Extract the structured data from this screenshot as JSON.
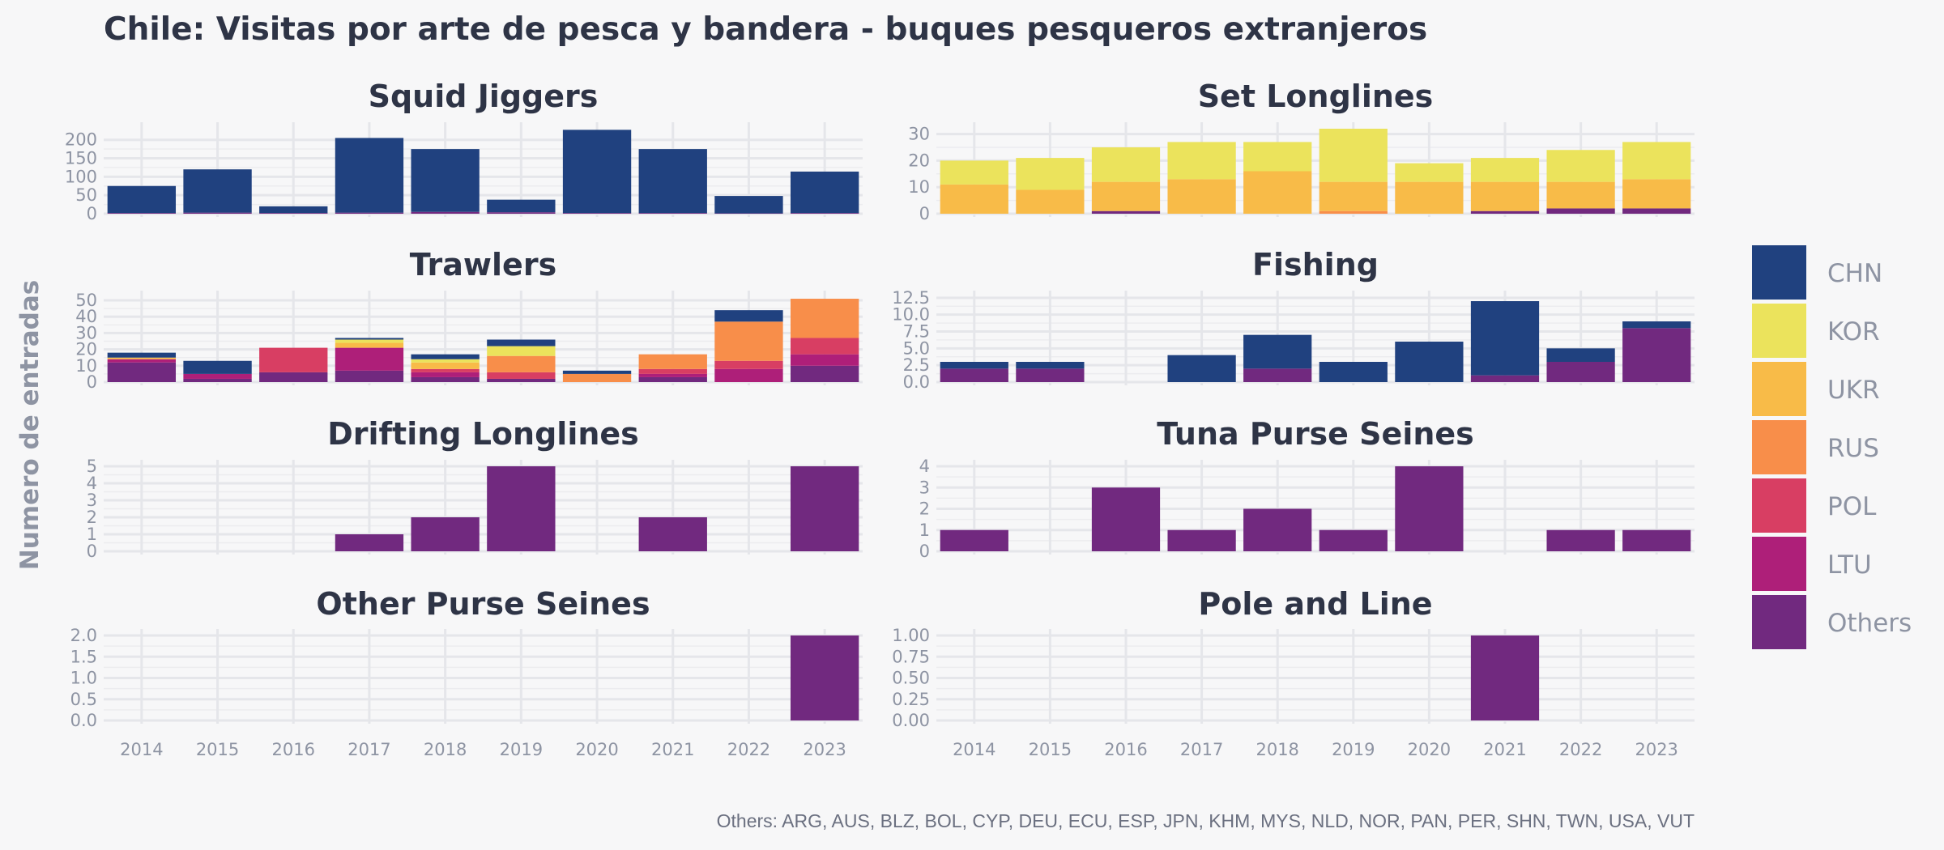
{
  "colors": {
    "CHN": "#20417f",
    "KOR": "#ebe35c",
    "UKR": "#f8bb48",
    "RUS": "#f88e4a",
    "POL": "#d83e63",
    "LTU": "#ae1f79",
    "Others": "#71297f"
  },
  "chart_data": {
    "type": "bar",
    "stacked": true,
    "title": "Chile: Visitas por arte de pesca y bandera - buques pesqueros extranjeros",
    "ylabel": "Numero de entradas",
    "caption": "Others: ARG, AUS, BLZ, BOL, CYP, DEU, ECU, ESP, JPN, KHM, MYS, NLD, NOR, PAN, PER, SHN, TWN, USA, VUT",
    "x": [
      "2014",
      "2015",
      "2016",
      "2017",
      "2018",
      "2019",
      "2020",
      "2021",
      "2022",
      "2023"
    ],
    "legend": {
      "position": "right",
      "entries": [
        "CHN",
        "KOR",
        "UKR",
        "RUS",
        "POL",
        "LTU",
        "Others"
      ]
    },
    "grid": true,
    "panels": [
      {
        "name": "Squid Jiggers",
        "ylim": [
          0,
          230
        ],
        "yticks": [
          0,
          50,
          100,
          150,
          200
        ],
        "ytick_labels": [
          "0",
          "50",
          "100",
          "150",
          "200"
        ],
        "series": [
          {
            "name": "Others",
            "values": [
              2,
              3,
              2,
              3,
              5,
              4,
              2,
              2,
              1,
              2
            ]
          },
          {
            "name": "LTU",
            "values": [
              0,
              0,
              0,
              0,
              0,
              0,
              0,
              0,
              0,
              0
            ]
          },
          {
            "name": "POL",
            "values": [
              0,
              0,
              0,
              0,
              0,
              0,
              0,
              0,
              0,
              0
            ]
          },
          {
            "name": "RUS",
            "values": [
              0,
              0,
              0,
              0,
              0,
              0,
              0,
              0,
              0,
              0
            ]
          },
          {
            "name": "UKR",
            "values": [
              0,
              0,
              0,
              0,
              0,
              0,
              0,
              0,
              0,
              0
            ]
          },
          {
            "name": "KOR",
            "values": [
              0,
              0,
              0,
              0,
              0,
              0,
              0,
              0,
              0,
              0
            ]
          },
          {
            "name": "CHN",
            "values": [
              73,
              117,
              18,
              202,
              170,
              34,
              225,
              173,
              47,
              112
            ]
          }
        ]
      },
      {
        "name": "Set Longlines",
        "ylim": [
          0,
          32
        ],
        "yticks": [
          0,
          10,
          20,
          30
        ],
        "ytick_labels": [
          "0",
          "10",
          "20",
          "30"
        ],
        "series": [
          {
            "name": "Others",
            "values": [
              0,
              0,
              1,
              0,
              0,
              0,
              0,
              1,
              2,
              2
            ]
          },
          {
            "name": "LTU",
            "values": [
              0,
              0,
              0,
              0,
              0,
              0,
              0,
              0,
              0,
              0
            ]
          },
          {
            "name": "POL",
            "values": [
              0,
              0,
              0,
              0,
              0,
              0,
              0,
              0,
              0,
              0
            ]
          },
          {
            "name": "RUS",
            "values": [
              0,
              0,
              0,
              0,
              0,
              1,
              0,
              0,
              0,
              0
            ]
          },
          {
            "name": "UKR",
            "values": [
              11,
              9,
              11,
              13,
              16,
              11,
              12,
              11,
              10,
              11
            ]
          },
          {
            "name": "KOR",
            "values": [
              9,
              12,
              13,
              14,
              11,
              20,
              7,
              9,
              12,
              14
            ]
          },
          {
            "name": "CHN",
            "values": [
              0,
              0,
              0,
              0,
              0,
              0,
              0,
              0,
              0,
              0
            ]
          }
        ]
      },
      {
        "name": "Trawlers",
        "ylim": [
          0,
          52
        ],
        "yticks": [
          0,
          10,
          20,
          30,
          40,
          50
        ],
        "ytick_labels": [
          "0",
          "10",
          "20",
          "30",
          "40",
          "50"
        ],
        "series": [
          {
            "name": "Others",
            "values": [
              12,
              2,
              6,
              7,
              3,
              2,
              0,
              3,
              0,
              10
            ]
          },
          {
            "name": "LTU",
            "values": [
              2,
              3,
              0,
              14,
              3,
              0,
              0,
              2,
              8,
              7
            ]
          },
          {
            "name": "POL",
            "values": [
              0,
              0,
              15,
              0,
              2,
              4,
              0,
              3,
              5,
              10
            ]
          },
          {
            "name": "RUS",
            "values": [
              0,
              0,
              0,
              0,
              0,
              10,
              5,
              9,
              24,
              24
            ]
          },
          {
            "name": "UKR",
            "values": [
              1,
              0,
              0,
              3,
              4,
              0,
              0,
              0,
              0,
              0
            ]
          },
          {
            "name": "KOR",
            "values": [
              0,
              0,
              0,
              2,
              2,
              6,
              0,
              0,
              0,
              0
            ]
          },
          {
            "name": "CHN",
            "values": [
              3,
              8,
              0,
              1,
              3,
              4,
              2,
              0,
              7,
              0
            ]
          }
        ]
      },
      {
        "name": "Fishing",
        "ylim": [
          0,
          12.6
        ],
        "yticks": [
          0,
          2.5,
          5,
          7.5,
          10,
          12.5
        ],
        "ytick_labels": [
          "0.0",
          "2.5",
          "5.0",
          "7.5",
          "10.0",
          "12.5"
        ],
        "series": [
          {
            "name": "Others",
            "values": [
              2,
              2,
              0,
              0,
              2,
              0,
              0,
              1,
              3,
              8
            ]
          },
          {
            "name": "LTU",
            "values": [
              0,
              0,
              0,
              0,
              0,
              0,
              0,
              0,
              0,
              0
            ]
          },
          {
            "name": "POL",
            "values": [
              0,
              0,
              0,
              0,
              0,
              0,
              0,
              0,
              0,
              0
            ]
          },
          {
            "name": "RUS",
            "values": [
              0,
              0,
              0,
              0,
              0,
              0,
              0,
              0,
              0,
              0
            ]
          },
          {
            "name": "UKR",
            "values": [
              0,
              0,
              0,
              0,
              0,
              0,
              0,
              0,
              0,
              0
            ]
          },
          {
            "name": "KOR",
            "values": [
              0,
              0,
              0,
              0,
              0,
              0,
              0,
              0,
              0,
              0
            ]
          },
          {
            "name": "CHN",
            "values": [
              1,
              1,
              0,
              4,
              5,
              3,
              6,
              11,
              2,
              1
            ]
          }
        ]
      },
      {
        "name": "Drifting Longlines",
        "ylim": [
          0,
          5
        ],
        "yticks": [
          0,
          1,
          2,
          3,
          4,
          5
        ],
        "ytick_labels": [
          "0",
          "1",
          "2",
          "3",
          "4",
          "5"
        ],
        "series": [
          {
            "name": "Others",
            "values": [
              0,
              0,
              0,
              1,
              2,
              5,
              0,
              2,
              0,
              5
            ]
          }
        ]
      },
      {
        "name": "Tuna Purse Seines",
        "ylim": [
          0,
          4
        ],
        "yticks": [
          0,
          1,
          2,
          3,
          4
        ],
        "ytick_labels": [
          "0",
          "1",
          "2",
          "3",
          "4"
        ],
        "series": [
          {
            "name": "Others",
            "values": [
              1,
              0,
              3,
              1,
              2,
              1,
              4,
              0,
              1,
              1
            ]
          }
        ]
      },
      {
        "name": "Other Purse Seines",
        "ylim": [
          0,
          2
        ],
        "yticks": [
          0,
          0.5,
          1,
          1.5,
          2
        ],
        "ytick_labels": [
          "0.0",
          "0.5",
          "1.0",
          "1.5",
          "2.0"
        ],
        "series": [
          {
            "name": "Others",
            "values": [
              0,
              0,
              0,
              0,
              0,
              0,
              0,
              0,
              0,
              2
            ]
          }
        ]
      },
      {
        "name": "Pole and Line",
        "ylim": [
          0,
          1
        ],
        "yticks": [
          0,
          0.25,
          0.5,
          0.75,
          1
        ],
        "ytick_labels": [
          "0.00",
          "0.25",
          "0.50",
          "0.75",
          "1.00"
        ],
        "series": [
          {
            "name": "Others",
            "values": [
              0,
              0,
              0,
              0,
              0,
              0,
              0,
              1,
              0,
              0
            ]
          }
        ]
      }
    ]
  }
}
